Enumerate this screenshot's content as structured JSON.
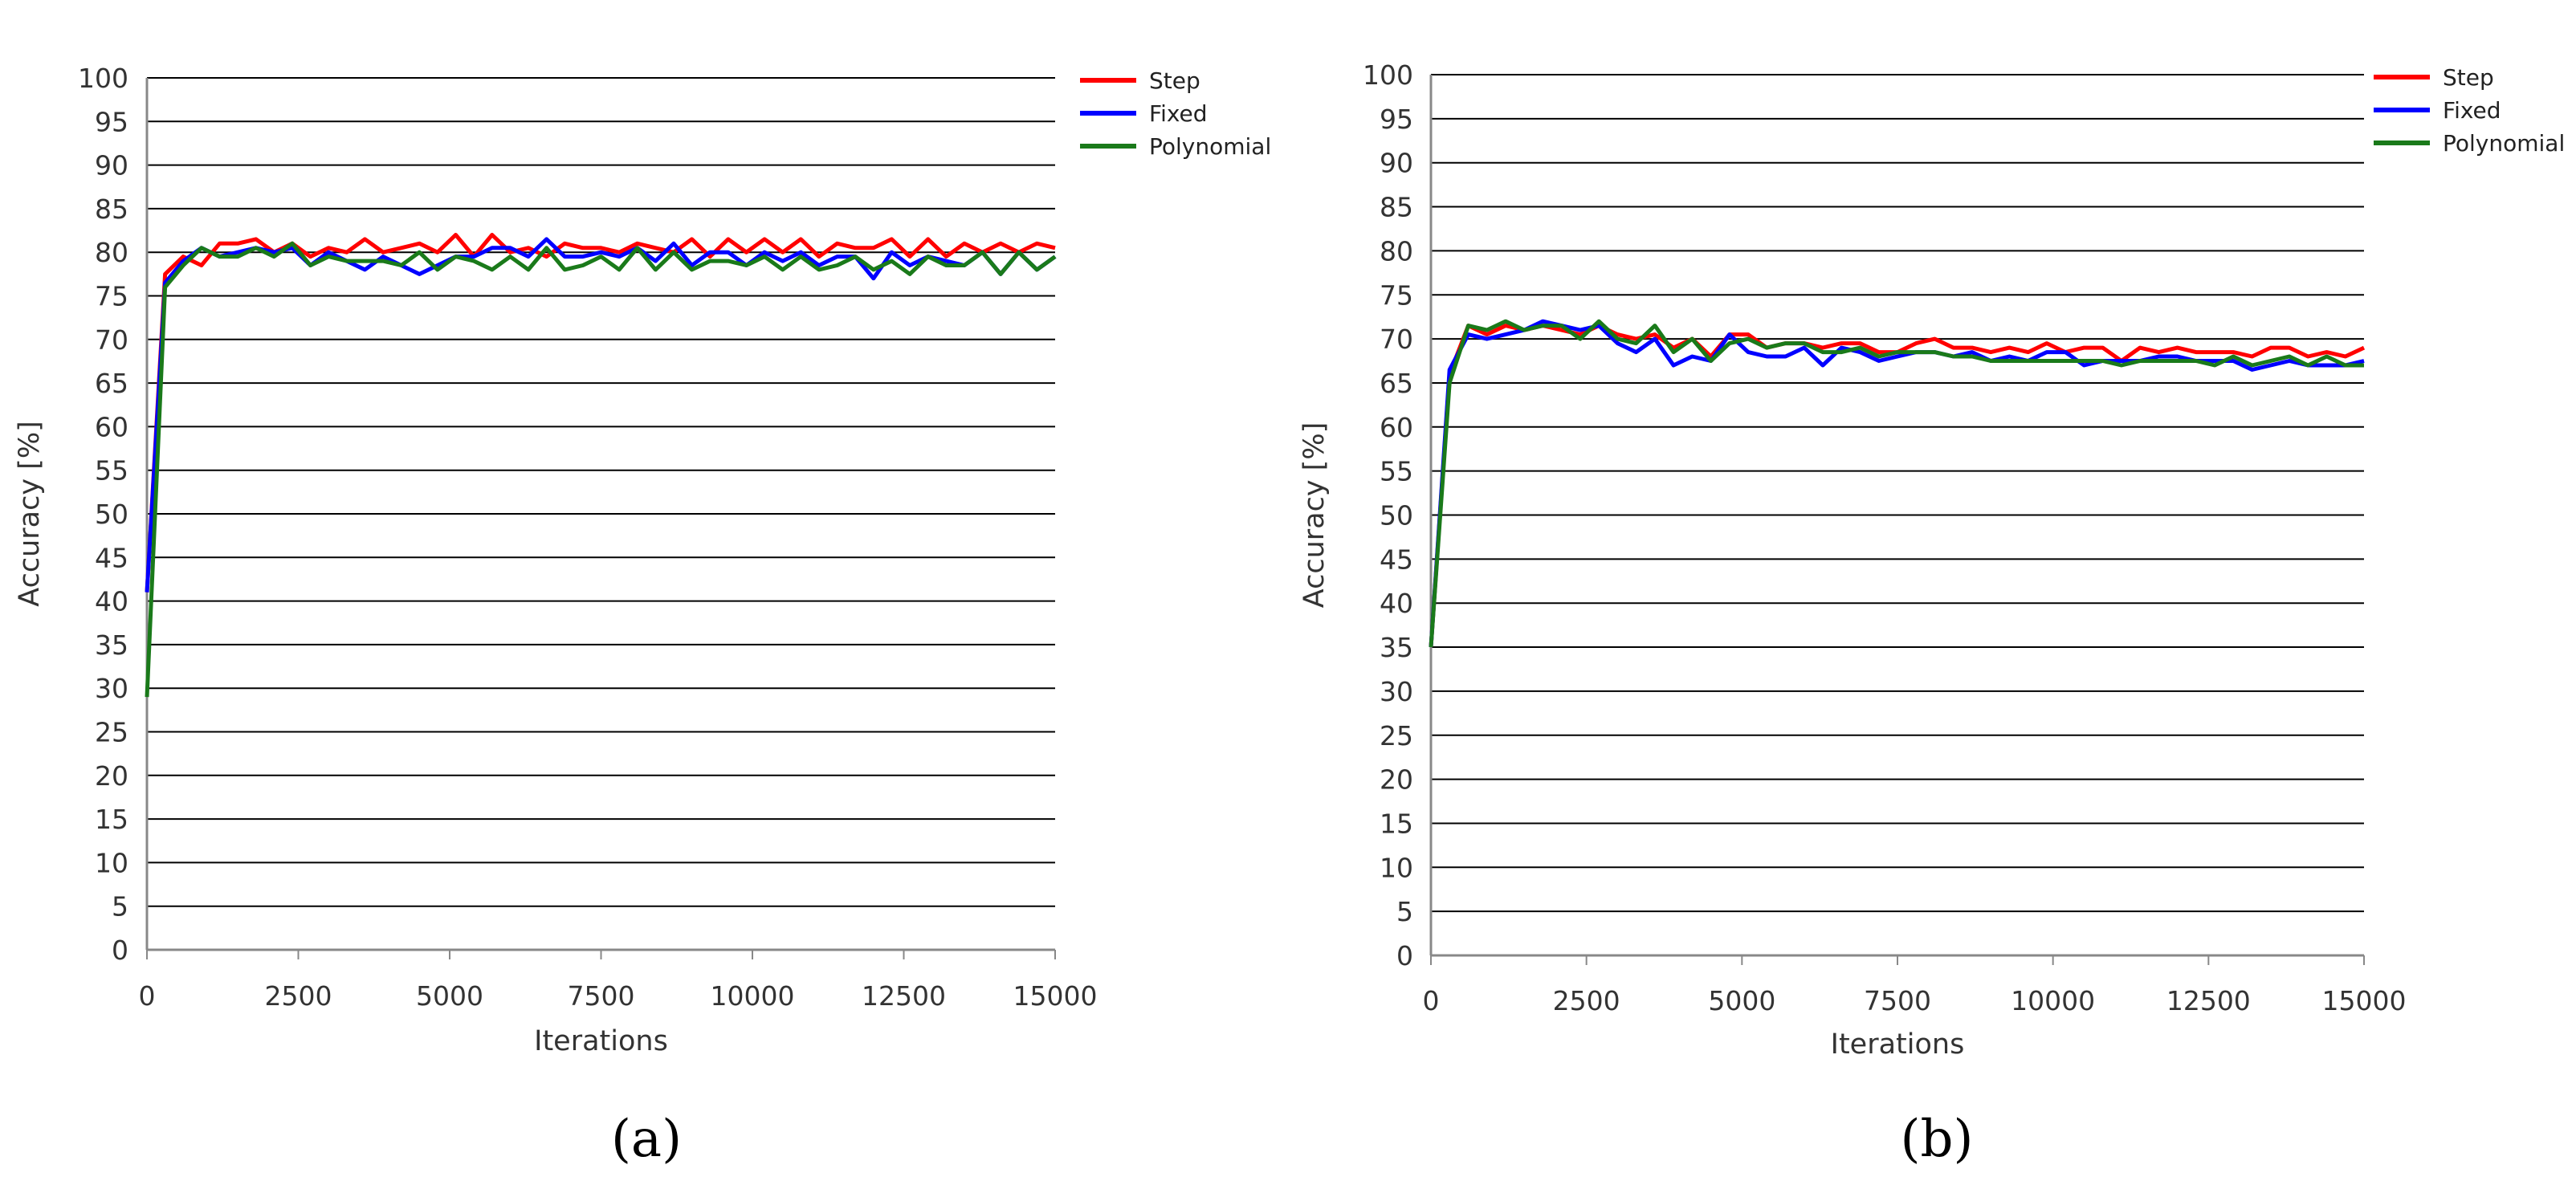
{
  "chart_data": [
    {
      "type": "line",
      "panel_label": "(a)",
      "xlabel": "Iterations",
      "ylabel": "Accuracy [%]",
      "xlim": [
        0,
        15000
      ],
      "ylim": [
        0,
        100
      ],
      "x_ticks": [
        "0",
        "2500",
        "5000",
        "7500",
        "10000",
        "12500",
        "15000"
      ],
      "y_ticks": [
        "0",
        "5",
        "10",
        "15",
        "20",
        "25",
        "30",
        "35",
        "40",
        "45",
        "50",
        "55",
        "60",
        "65",
        "70",
        "75",
        "80",
        "85",
        "90",
        "95",
        "100"
      ],
      "grid": "horizontal",
      "legend_position": "top-right",
      "x": [
        0,
        300,
        600,
        900,
        1200,
        1500,
        1800,
        2100,
        2400,
        2700,
        3000,
        3300,
        3600,
        3900,
        4200,
        4500,
        4800,
        5100,
        5400,
        5700,
        6000,
        6300,
        6600,
        6900,
        7200,
        7500,
        7800,
        8100,
        8400,
        8700,
        9000,
        9300,
        9600,
        9900,
        10200,
        10500,
        10800,
        11100,
        11400,
        11700,
        12000,
        12300,
        12600,
        12900,
        13200,
        13500,
        13800,
        14100,
        14400,
        14700,
        15000
      ],
      "series": [
        {
          "name": "Step",
          "color": "#ff0000",
          "values": [
            41,
            77.5,
            79.5,
            78.5,
            81,
            81,
            81.5,
            80,
            81,
            79.5,
            80.5,
            80,
            81.5,
            80,
            80.5,
            81,
            80,
            82,
            79.5,
            82,
            80,
            80.5,
            79.5,
            81,
            80.5,
            80.5,
            80,
            81,
            80.5,
            80,
            81.5,
            79.5,
            81.5,
            80,
            81.5,
            80,
            81.5,
            79.5,
            81,
            80.5,
            80.5,
            81.5,
            79.5,
            81.5,
            79.5,
            81,
            80,
            81,
            80,
            81,
            80.5
          ]
        },
        {
          "name": "Fixed",
          "color": "#0000ff",
          "values": [
            41,
            76.5,
            79,
            80.5,
            79.5,
            80,
            80.5,
            80,
            80.5,
            78.5,
            80,
            79,
            78,
            79.5,
            78.5,
            77.5,
            78.5,
            79.5,
            79.5,
            80.5,
            80.5,
            79.5,
            81.5,
            79.5,
            79.5,
            80,
            79.5,
            80.5,
            79,
            81,
            78.5,
            80,
            80,
            78.5,
            80,
            79,
            80,
            78.5,
            79.5,
            79.5,
            77,
            80,
            78.5,
            79.5,
            79,
            78.5,
            80,
            77.5,
            80,
            78,
            79.5
          ]
        },
        {
          "name": "Polynomial",
          "color": "#1a7a1a",
          "values": [
            29,
            76,
            78.5,
            80.5,
            79.5,
            79.5,
            80.5,
            79.5,
            81,
            78.5,
            79.5,
            79,
            79,
            79,
            78.5,
            80,
            78,
            79.5,
            79,
            78,
            79.5,
            78,
            80.5,
            78,
            78.5,
            79.5,
            78,
            80.5,
            78,
            80,
            78,
            79,
            79,
            78.5,
            79.5,
            78,
            79.5,
            78,
            78.5,
            79.5,
            78,
            79,
            77.5,
            79.5,
            78.5,
            78.5,
            80,
            77.5,
            80,
            78,
            79.5
          ]
        }
      ]
    },
    {
      "type": "line",
      "panel_label": "(b)",
      "xlabel": "Iterations",
      "ylabel": "Accuracy [%]",
      "xlim": [
        0,
        15000
      ],
      "ylim": [
        0,
        100
      ],
      "x_ticks": [
        "0",
        "2500",
        "5000",
        "7500",
        "10000",
        "12500",
        "15000"
      ],
      "y_ticks": [
        "0",
        "5",
        "10",
        "15",
        "20",
        "25",
        "30",
        "35",
        "40",
        "45",
        "50",
        "55",
        "60",
        "65",
        "70",
        "75",
        "80",
        "85",
        "90",
        "95",
        "100"
      ],
      "grid": "horizontal",
      "legend_position": "top-right",
      "x": [
        0,
        300,
        600,
        900,
        1200,
        1500,
        1800,
        2100,
        2400,
        2700,
        3000,
        3300,
        3600,
        3900,
        4200,
        4500,
        4800,
        5100,
        5400,
        5700,
        6000,
        6300,
        6600,
        6900,
        7200,
        7500,
        7800,
        8100,
        8400,
        8700,
        9000,
        9300,
        9600,
        9900,
        10200,
        10500,
        10800,
        11100,
        11400,
        11700,
        12000,
        12300,
        12600,
        12900,
        13200,
        13500,
        13800,
        14100,
        14400,
        14700,
        15000
      ],
      "series": [
        {
          "name": "Step",
          "color": "#ff0000",
          "values": [
            35,
            66,
            71.5,
            70.5,
            71.5,
            71,
            71.5,
            71,
            70.5,
            71.5,
            70.5,
            70,
            70.5,
            69,
            70,
            68,
            70.5,
            70.5,
            69,
            69.5,
            69.5,
            69,
            69.5,
            69.5,
            68.5,
            68.5,
            69.5,
            70,
            69,
            69,
            68.5,
            69,
            68.5,
            69.5,
            68.5,
            69,
            69,
            67.5,
            69,
            68.5,
            69,
            68.5,
            68.5,
            68.5,
            68,
            69,
            69,
            68,
            68.5,
            68,
            69
          ]
        },
        {
          "name": "Fixed",
          "color": "#0000ff",
          "values": [
            35,
            66.5,
            70.5,
            70,
            70.5,
            71,
            72,
            71.5,
            71,
            71.5,
            69.5,
            68.5,
            70,
            67,
            68,
            67.5,
            70.5,
            68.5,
            68,
            68,
            69,
            67,
            69,
            68.5,
            67.5,
            68,
            68.5,
            68.5,
            68,
            68.5,
            67.5,
            68,
            67.5,
            68.5,
            68.5,
            67,
            67.5,
            67.5,
            67.5,
            68,
            68,
            67.5,
            67.5,
            67.5,
            66.5,
            67,
            67.5,
            67,
            67,
            67,
            67.5
          ]
        },
        {
          "name": "Polynomial",
          "color": "#1a7a1a",
          "values": [
            35,
            65,
            71.5,
            71,
            72,
            71,
            71.5,
            71.5,
            70,
            72,
            70,
            69.5,
            71.5,
            68.5,
            70,
            67.5,
            69.5,
            70,
            69,
            69.5,
            69.5,
            68.5,
            68.5,
            69,
            68,
            68.5,
            68.5,
            68.5,
            68,
            68,
            67.5,
            67.5,
            67.5,
            67.5,
            67.5,
            67.5,
            67.5,
            67,
            67.5,
            67.5,
            67.5,
            67.5,
            67,
            68,
            67,
            67.5,
            68,
            67,
            68,
            67,
            67
          ]
        }
      ]
    }
  ]
}
